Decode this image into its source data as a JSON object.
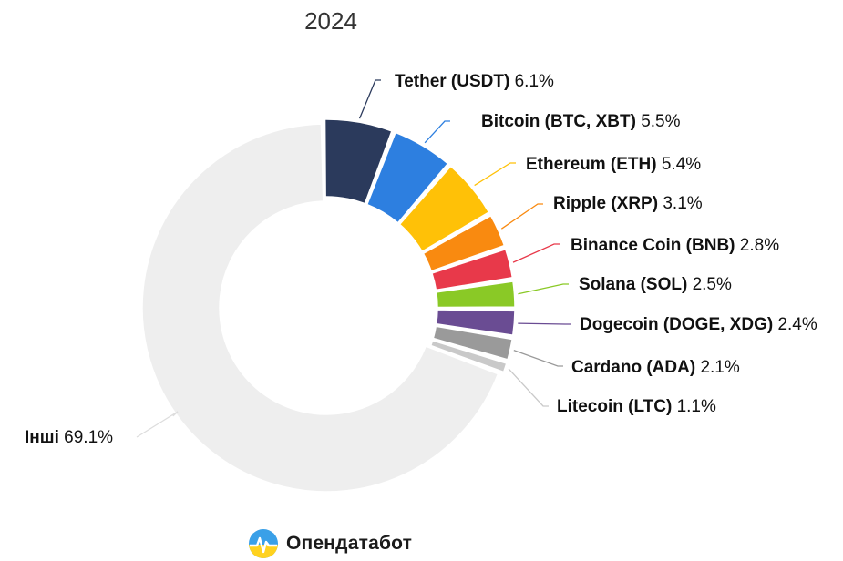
{
  "chart_data": {
    "type": "pie",
    "subtype": "donut",
    "title": "2024",
    "unit": "%",
    "slices": [
      {
        "name": "Tether (USDT)",
        "value": 6.1,
        "label": "6.1%",
        "color": "#2b3a5c"
      },
      {
        "name": "Bitcoin (BTC, XBT)",
        "value": 5.5,
        "label": "5.5%",
        "color": "#2d7fe0"
      },
      {
        "name": "Ethereum (ETH)",
        "value": 5.4,
        "label": "5.4%",
        "color": "#ffc107"
      },
      {
        "name": "Ripple (XRP)",
        "value": 3.1,
        "label": "3.1%",
        "color": "#f98a10"
      },
      {
        "name": "Binance Coin (BNB)",
        "value": 2.8,
        "label": "2.8%",
        "color": "#e8394a"
      },
      {
        "name": "Solana (SOL)",
        "value": 2.5,
        "label": "2.5%",
        "color": "#8ac926"
      },
      {
        "name": "Dogecoin (DOGE, XDG)",
        "value": 2.4,
        "label": "2.4%",
        "color": "#6a4c93"
      },
      {
        "name": "Cardano (ADA)",
        "value": 2.1,
        "label": "2.1%",
        "color": "#9a9a9a"
      },
      {
        "name": "Litecoin (LTC)",
        "value": 1.1,
        "label": "1.1%",
        "color": "#c9c9c9"
      },
      {
        "name": "Інші",
        "value": 69.1,
        "label": "69.1%",
        "color": "#eeeeee"
      }
    ]
  },
  "brand": {
    "name": "Опендатабот",
    "icon": "opendatabot-logo-icon"
  }
}
